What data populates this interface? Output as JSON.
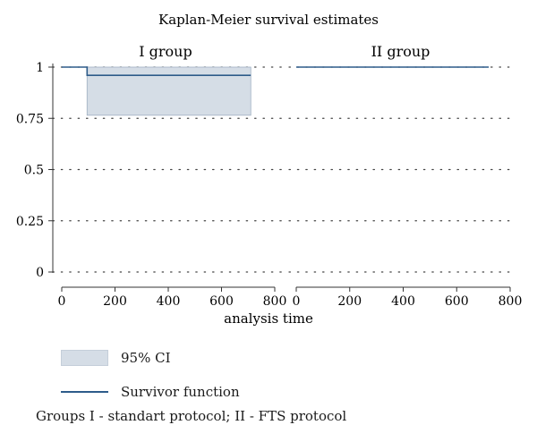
{
  "chart_data": {
    "type": "line",
    "title": "Kaplan-Meier survival estimates",
    "xlabel": "analysis time",
    "ylabel": "",
    "xlim": [
      0,
      800
    ],
    "ylim": [
      0,
      1
    ],
    "x_ticks": [
      0,
      200,
      400,
      600,
      800
    ],
    "y_ticks": [
      0,
      0.25,
      0.5,
      0.75,
      1
    ],
    "y_tick_labels": [
      "0",
      "0.25",
      "0.5",
      "0.75",
      "1"
    ],
    "grid": "horizontal dotted",
    "panels": [
      {
        "name": "I group",
        "survivor_function": {
          "x": [
            0,
            95,
            95,
            710
          ],
          "y": [
            1,
            1,
            0.96,
            0.96
          ]
        },
        "ci_95": {
          "x_start": 95,
          "x_end": 710,
          "lower": 0.765,
          "upper": 1.0
        }
      },
      {
        "name": "II group",
        "survivor_function": {
          "x": [
            0,
            720
          ],
          "y": [
            1,
            1
          ]
        }
      }
    ],
    "legend": {
      "position": "bottom-left",
      "items": [
        {
          "label": "95% CI",
          "kind": "area",
          "color": "#d5dde6"
        },
        {
          "label": "Survivor function",
          "kind": "line",
          "color": "#2e5c8a"
        }
      ]
    },
    "note": "Groups I - standart protocol; II - FTS protocol",
    "colors": {
      "line": "#2e5c8a",
      "ci_fill": "#d5dde6",
      "grid": "#444444",
      "axis": "#333333"
    }
  }
}
